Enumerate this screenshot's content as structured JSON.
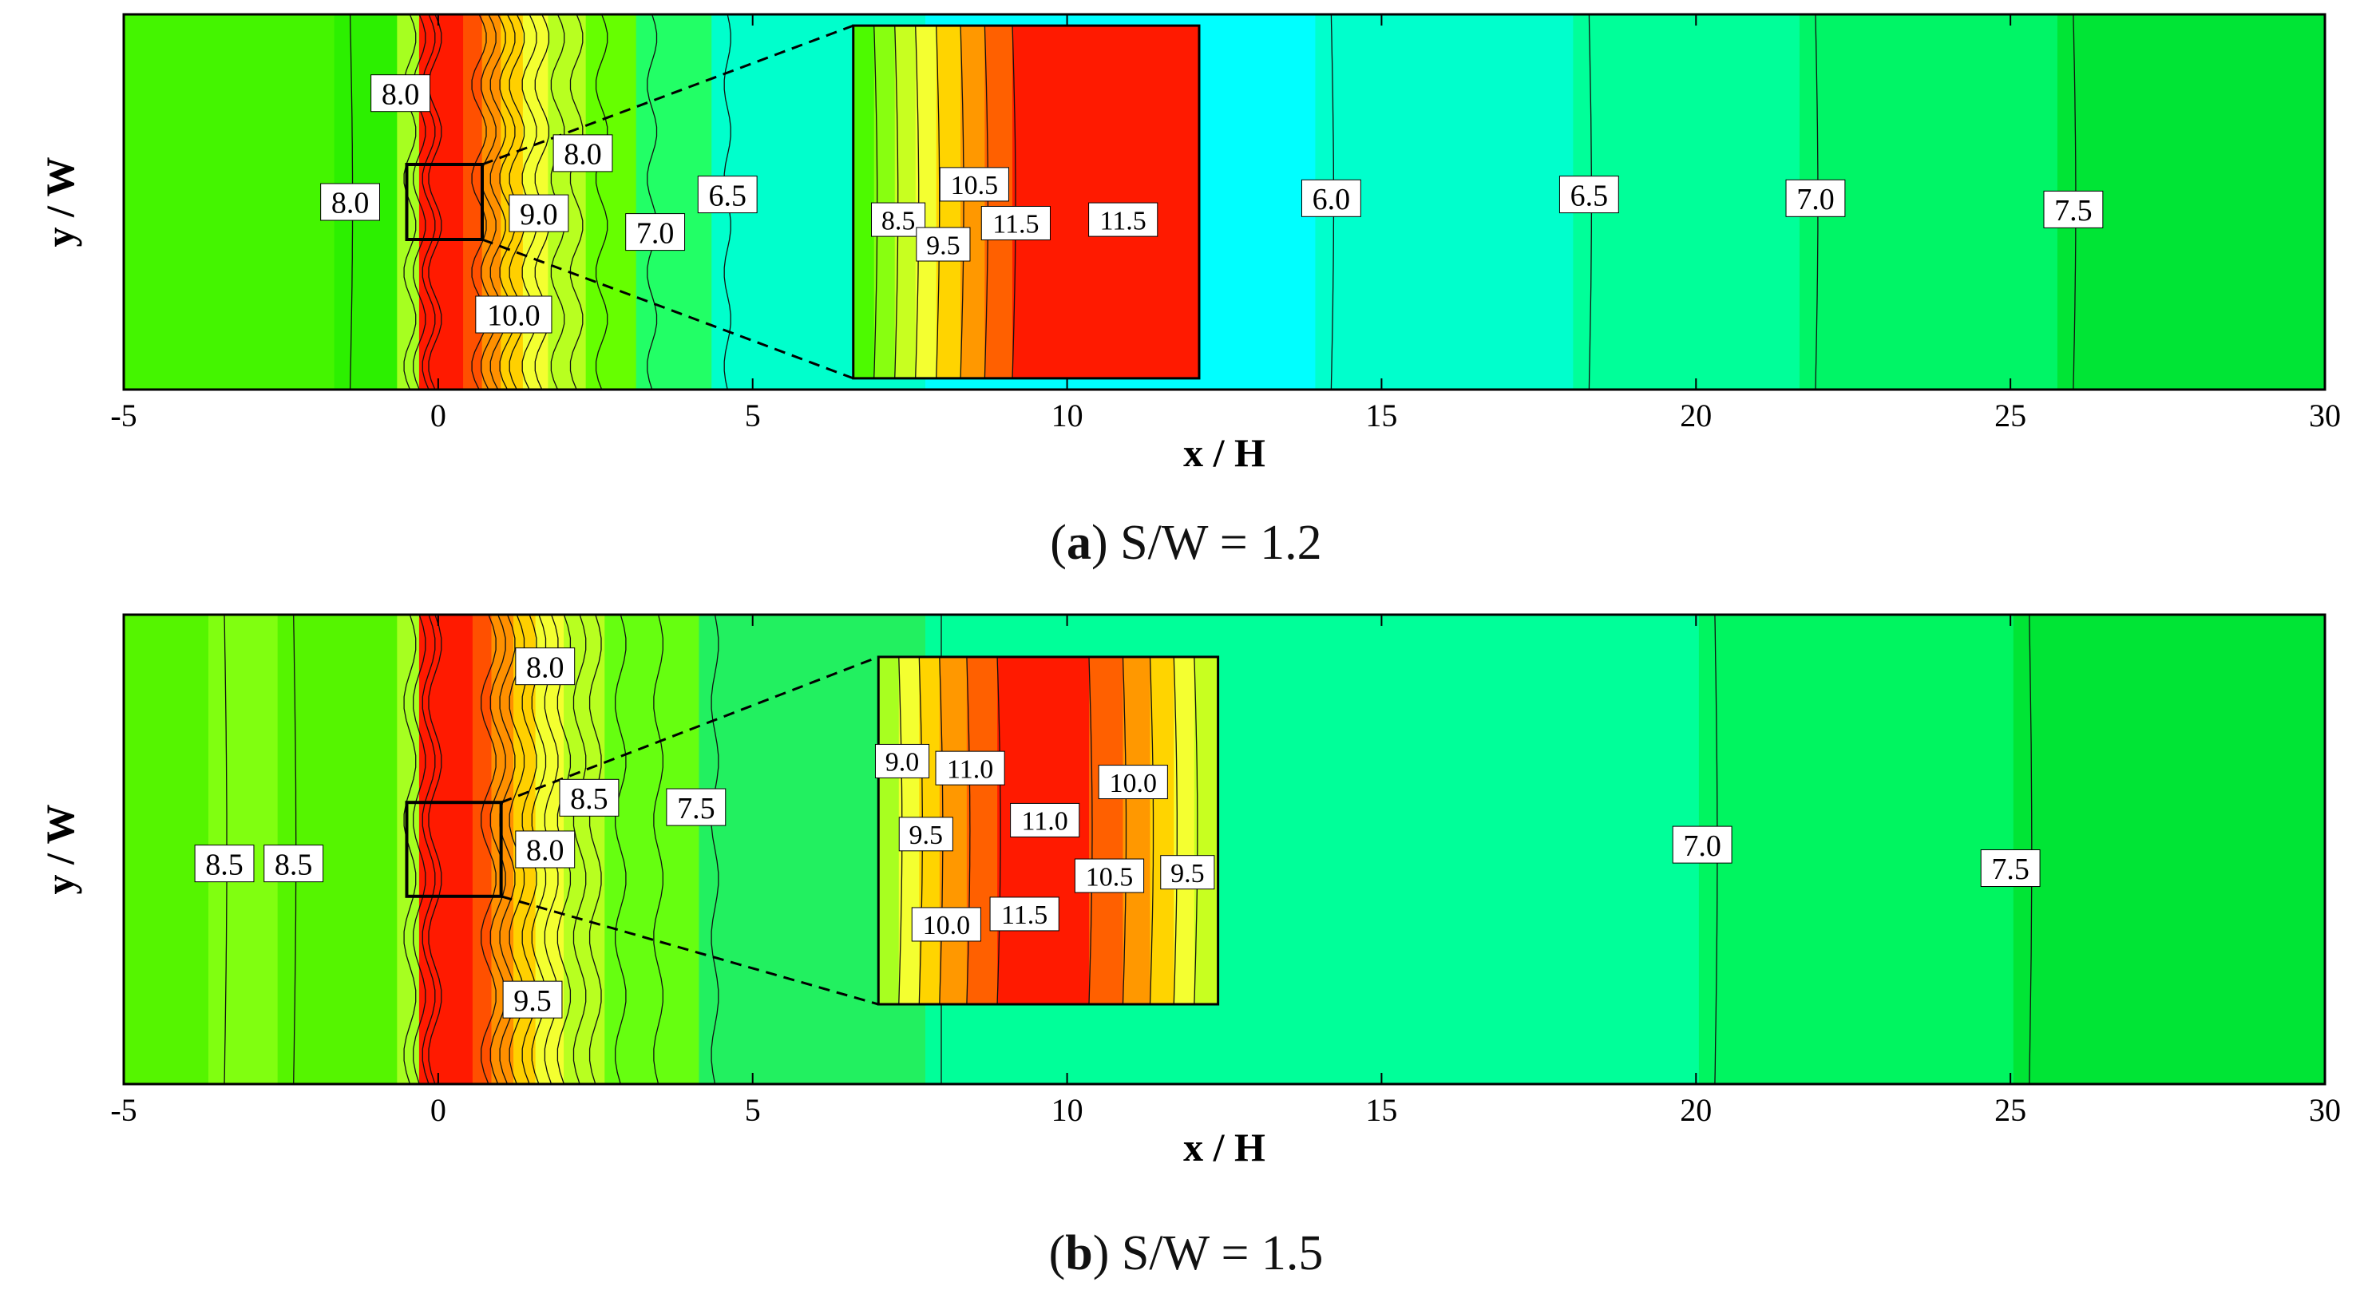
{
  "chart_data": [
    {
      "panel": "a",
      "type": "heatmap",
      "subtype": "contour",
      "caption": {
        "letter": "a",
        "text": "S/W = 1.2"
      },
      "xlabel": "x / H",
      "ylabel": "y / W",
      "xlim": [
        -5,
        30
      ],
      "xticks": [
        "-5",
        "0",
        "5",
        "10",
        "15",
        "20",
        "25",
        "30"
      ],
      "colors": [
        "#3df000",
        "#44f500",
        "#ff0000",
        "#ff4a00",
        "#ff8c00",
        "#ffd400",
        "#f0ff30",
        "#b8ff20",
        "#66ff00",
        "#22ff66",
        "#22ffaa",
        "#00ffe6",
        "#00d060"
      ],
      "zones": [
        {
          "x0": -5.0,
          "x1": -1.4,
          "color": "#44f500"
        },
        {
          "x0": -1.4,
          "x1": -0.4,
          "color": "#2cf000"
        },
        {
          "x0": -0.4,
          "x1": -0.05,
          "color": "#a6ff20"
        },
        {
          "x0": -0.05,
          "x1": 0.65,
          "color": "#ff1a00"
        },
        {
          "x0": 0.65,
          "x1": 0.95,
          "color": "#ff5000"
        },
        {
          "x0": 0.95,
          "x1": 1.25,
          "color": "#ff9000"
        },
        {
          "x0": 1.25,
          "x1": 1.6,
          "color": "#ffd000"
        },
        {
          "x0": 1.6,
          "x1": 2.0,
          "color": "#f4ff30"
        },
        {
          "x0": 2.0,
          "x1": 2.6,
          "color": "#b8ff20"
        },
        {
          "x0": 2.6,
          "x1": 3.4,
          "color": "#66ff00"
        },
        {
          "x0": 3.4,
          "x1": 4.6,
          "color": "#22ff66"
        },
        {
          "x0": 4.6,
          "x1": 8.0,
          "color": "#00ffcc"
        },
        {
          "x0": 8.0,
          "x1": 14.2,
          "color": "#00ffff"
        },
        {
          "x0": 14.2,
          "x1": 18.3,
          "color": "#00ffcc"
        },
        {
          "x0": 18.3,
          "x1": 21.9,
          "color": "#00ff99"
        },
        {
          "x0": 21.9,
          "x1": 26.0,
          "color": "#00f566"
        },
        {
          "x0": 26.0,
          "x1": 30.0,
          "color": "#00e535"
        }
      ],
      "contour_x": [
        -1.4,
        -0.45,
        -0.3,
        -0.15,
        -0.05,
        0.65,
        0.8,
        0.95,
        1.1,
        1.25,
        1.45,
        1.65,
        1.9,
        2.2,
        2.6,
        3.4,
        4.6,
        14.2,
        18.3,
        21.9,
        26.0
      ],
      "labels": [
        {
          "text": "8.0",
          "x": -1.4,
          "y": 0.5
        },
        {
          "text": "8.0",
          "x": -0.6,
          "y": 0.79
        },
        {
          "text": "8.0",
          "x": 2.3,
          "y": 0.63
        },
        {
          "text": "9.0",
          "x": 1.6,
          "y": 0.47
        },
        {
          "text": "7.0",
          "x": 3.45,
          "y": 0.42
        },
        {
          "text": "6.5",
          "x": 4.6,
          "y": 0.52
        },
        {
          "text": "10.0",
          "x": 1.2,
          "y": 0.2
        },
        {
          "text": "6.0",
          "x": 14.2,
          "y": 0.51
        },
        {
          "text": "6.5",
          "x": 18.3,
          "y": 0.52
        },
        {
          "text": "7.0",
          "x": 21.9,
          "y": 0.51
        },
        {
          "text": "7.5",
          "x": 26.0,
          "y": 0.48
        }
      ],
      "zoom_box": {
        "x0": -0.5,
        "x1": 0.7,
        "y0": 0.4,
        "y1": 0.6
      },
      "inset": {
        "x0": 6.6,
        "x1": 12.1,
        "y0": 0.03,
        "y1": 0.97,
        "zones": [
          {
            "f0": 0.0,
            "f1": 0.06,
            "color": "#4dfa00"
          },
          {
            "f0": 0.06,
            "f1": 0.12,
            "color": "#88ff10"
          },
          {
            "f0": 0.12,
            "f1": 0.18,
            "color": "#c8ff20"
          },
          {
            "f0": 0.18,
            "f1": 0.24,
            "color": "#f4ff30"
          },
          {
            "f0": 0.24,
            "f1": 0.31,
            "color": "#ffd400"
          },
          {
            "f0": 0.31,
            "f1": 0.38,
            "color": "#ff9800"
          },
          {
            "f0": 0.38,
            "f1": 0.46,
            "color": "#ff6000"
          },
          {
            "f0": 0.46,
            "f1": 1.0,
            "color": "#ff1a00"
          }
        ],
        "labels": [
          {
            "text": "8.5",
            "fx": 0.13,
            "fy": 0.45
          },
          {
            "text": "10.5",
            "fx": 0.35,
            "fy": 0.55
          },
          {
            "text": "9.5",
            "fx": 0.26,
            "fy": 0.38
          },
          {
            "text": "11.5",
            "fx": 0.47,
            "fy": 0.44
          },
          {
            "text": "11.5",
            "fx": 0.78,
            "fy": 0.45
          }
        ]
      }
    },
    {
      "panel": "b",
      "type": "heatmap",
      "subtype": "contour",
      "caption": {
        "letter": "b",
        "text": "S/W = 1.5"
      },
      "xlabel": "x / H",
      "ylabel": "y / W",
      "xlim": [
        -5,
        30
      ],
      "xticks": [
        "-5",
        "0",
        "5",
        "10",
        "15",
        "20",
        "25",
        "30"
      ],
      "zones": [
        {
          "x0": -5.0,
          "x1": -3.4,
          "color": "#55f500"
        },
        {
          "x0": -3.4,
          "x1": -2.3,
          "color": "#80ff10"
        },
        {
          "x0": -2.3,
          "x1": -0.4,
          "color": "#55f500"
        },
        {
          "x0": -0.4,
          "x1": -0.05,
          "color": "#a6ff20"
        },
        {
          "x0": -0.05,
          "x1": 0.8,
          "color": "#ff1a00"
        },
        {
          "x0": 0.8,
          "x1": 1.1,
          "color": "#ff5000"
        },
        {
          "x0": 1.1,
          "x1": 1.45,
          "color": "#ff9000"
        },
        {
          "x0": 1.45,
          "x1": 1.8,
          "color": "#ffd000"
        },
        {
          "x0": 1.8,
          "x1": 2.25,
          "color": "#f4ff30"
        },
        {
          "x0": 2.25,
          "x1": 2.9,
          "color": "#b8ff20"
        },
        {
          "x0": 2.9,
          "x1": 4.4,
          "color": "#66ff10"
        },
        {
          "x0": 4.4,
          "x1": 8.0,
          "color": "#22f060"
        },
        {
          "x0": 8.0,
          "x1": 20.3,
          "color": "#00ff99"
        },
        {
          "x0": 20.3,
          "x1": 25.3,
          "color": "#00f560"
        },
        {
          "x0": 25.3,
          "x1": 30.0,
          "color": "#00e535"
        }
      ],
      "contour_x": [
        -3.4,
        -2.3,
        -0.45,
        -0.3,
        -0.15,
        -0.05,
        0.8,
        0.95,
        1.1,
        1.25,
        1.45,
        1.6,
        1.8,
        2.0,
        2.25,
        2.5,
        2.9,
        3.5,
        4.4,
        8.0,
        20.3,
        25.3
      ],
      "labels": [
        {
          "text": "8.5",
          "x": -3.4,
          "y": 0.47
        },
        {
          "text": "8.5",
          "x": -2.3,
          "y": 0.47
        },
        {
          "text": "8.0",
          "x": 1.7,
          "y": 0.89
        },
        {
          "text": "8.5",
          "x": 2.4,
          "y": 0.61
        },
        {
          "text": "8.0",
          "x": 1.7,
          "y": 0.5
        },
        {
          "text": "7.5",
          "x": 4.1,
          "y": 0.59
        },
        {
          "text": "9.5",
          "x": 1.5,
          "y": 0.18
        },
        {
          "text": "7.0",
          "x": 20.1,
          "y": 0.51
        },
        {
          "text": "7.5",
          "x": 25.0,
          "y": 0.46
        }
      ],
      "zoom_box": {
        "x0": -0.5,
        "x1": 1.0,
        "y0": 0.4,
        "y1": 0.6
      },
      "inset": {
        "x0": 7.0,
        "x1": 12.4,
        "y0": 0.17,
        "y1": 0.91,
        "zones": [
          {
            "f0": 0.0,
            "f1": 0.06,
            "color": "#a8ff20"
          },
          {
            "f0": 0.06,
            "f1": 0.12,
            "color": "#f4ff30"
          },
          {
            "f0": 0.12,
            "f1": 0.18,
            "color": "#ffd400"
          },
          {
            "f0": 0.18,
            "f1": 0.26,
            "color": "#ff9800"
          },
          {
            "f0": 0.26,
            "f1": 0.35,
            "color": "#ff6000"
          },
          {
            "f0": 0.35,
            "f1": 0.62,
            "color": "#ff1a00"
          },
          {
            "f0": 0.62,
            "f1": 0.72,
            "color": "#ff6000"
          },
          {
            "f0": 0.72,
            "f1": 0.8,
            "color": "#ff9800"
          },
          {
            "f0": 0.8,
            "f1": 0.87,
            "color": "#ffd400"
          },
          {
            "f0": 0.87,
            "f1": 0.93,
            "color": "#f4ff30"
          },
          {
            "f0": 0.93,
            "f1": 1.0,
            "color": "#c8ff20"
          }
        ],
        "labels": [
          {
            "text": "9.0",
            "fx": 0.07,
            "fy": 0.7
          },
          {
            "text": "11.0",
            "fx": 0.27,
            "fy": 0.68
          },
          {
            "text": "10.0",
            "fx": 0.75,
            "fy": 0.64
          },
          {
            "text": "9.5",
            "fx": 0.14,
            "fy": 0.49
          },
          {
            "text": "11.0",
            "fx": 0.49,
            "fy": 0.53
          },
          {
            "text": "10.5",
            "fx": 0.68,
            "fy": 0.37
          },
          {
            "text": "9.5",
            "fx": 0.91,
            "fy": 0.38
          },
          {
            "text": "10.0",
            "fx": 0.2,
            "fy": 0.23
          },
          {
            "text": "11.5",
            "fx": 0.43,
            "fy": 0.26
          }
        ]
      }
    }
  ]
}
